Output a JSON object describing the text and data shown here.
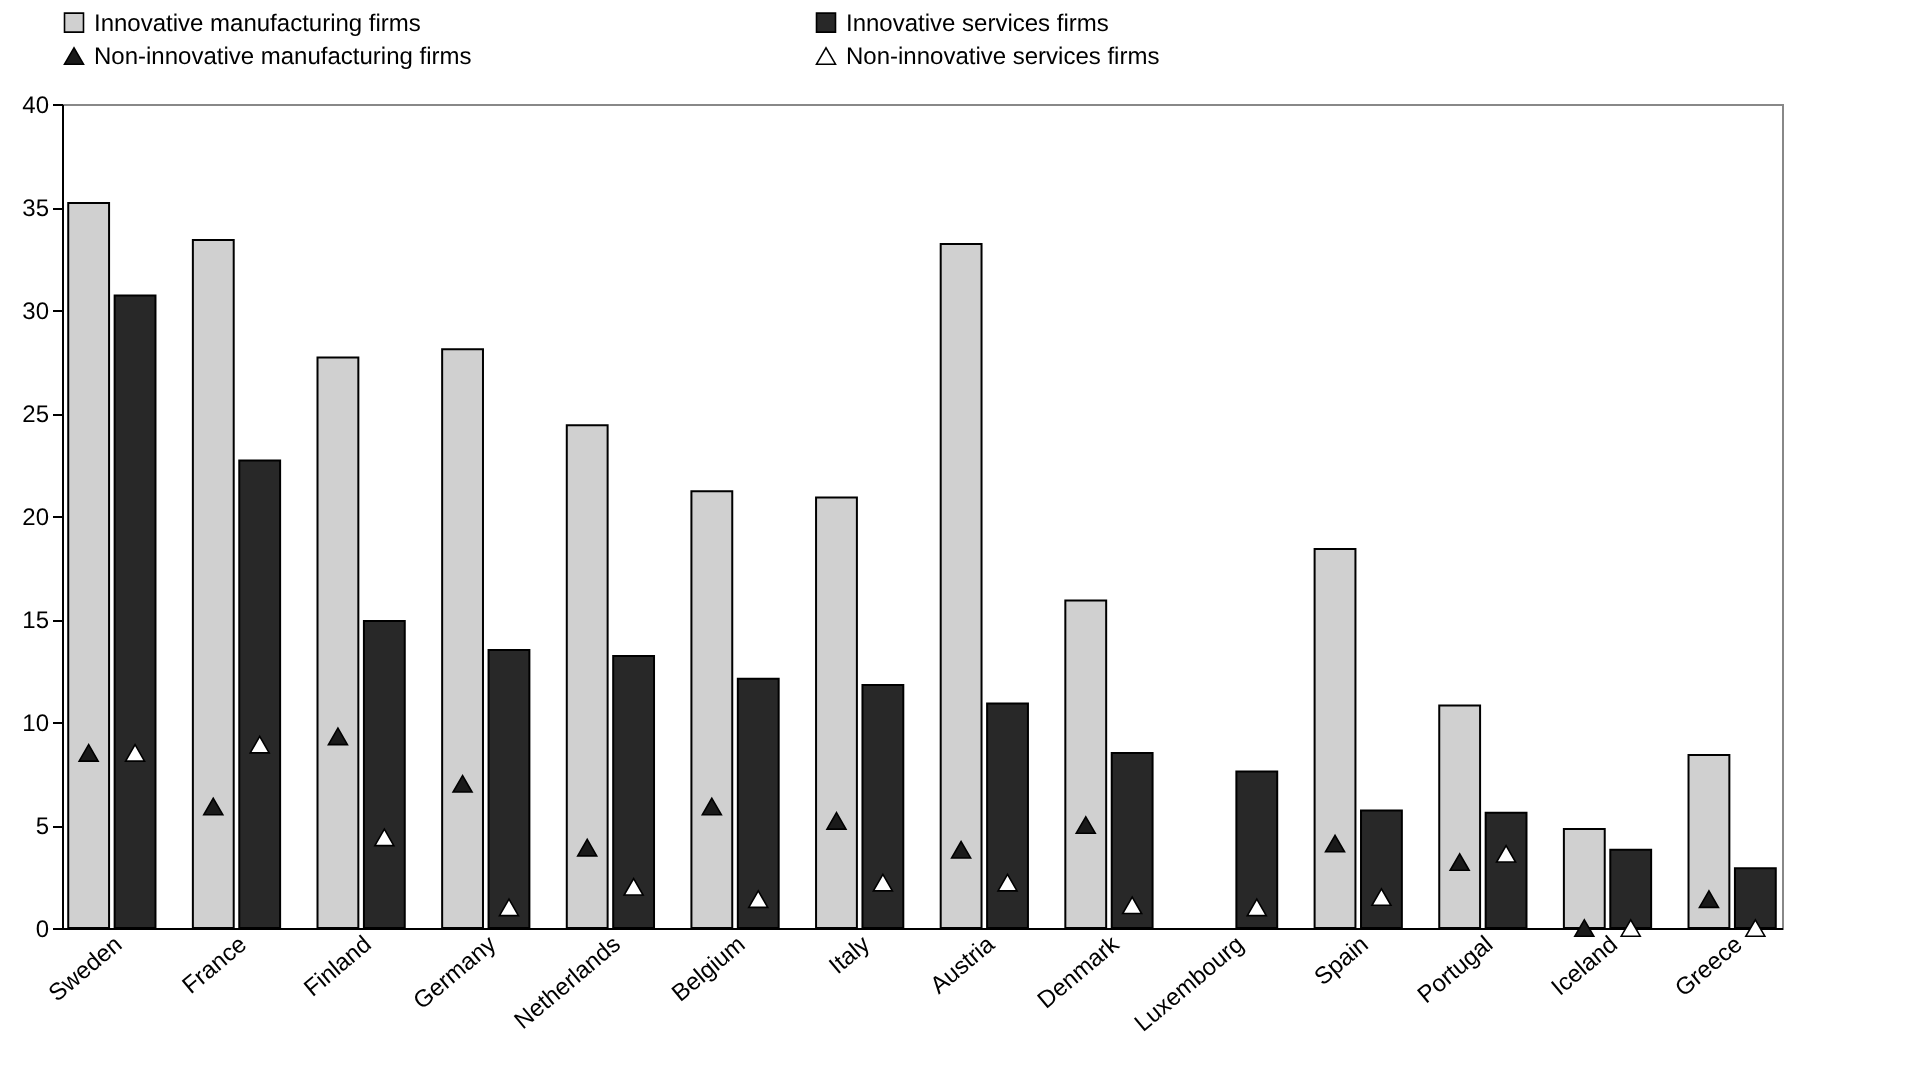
{
  "chart_data": {
    "type": "bar",
    "categories": [
      "Sweden",
      "France",
      "Finland",
      "Germany",
      "Netherlands",
      "Belgium",
      "Italy",
      "Austria",
      "Denmark",
      "Luxembourg",
      "Spain",
      "Portugal",
      "Iceland",
      "Greece"
    ],
    "series": [
      {
        "name": "Innovative manufacturing firms",
        "color": "#d0d0d0",
        "values": [
          35.2,
          33.4,
          27.7,
          28.1,
          24.4,
          21.2,
          20.9,
          33.2,
          15.9,
          null,
          18.4,
          10.8,
          4.8,
          8.4
        ]
      },
      {
        "name": "Innovative services firms",
        "color": "#282828",
        "values": [
          30.7,
          22.7,
          14.9,
          13.5,
          13.2,
          12.1,
          11.8,
          10.9,
          8.5,
          7.6,
          5.7,
          5.6,
          3.8,
          2.9
        ]
      },
      {
        "name": "Non-innovative manufacturing firms",
        "type": "scatter",
        "color": "#1a1a1a",
        "values": [
          8.5,
          5.9,
          9.3,
          7.0,
          3.9,
          5.9,
          5.2,
          3.8,
          5.0,
          null,
          4.1,
          3.2,
          0,
          1.4
        ]
      },
      {
        "name": "Non-innovative services firms",
        "type": "scatter",
        "color": "#ffffff",
        "values": [
          8.5,
          8.9,
          4.4,
          1.0,
          2.0,
          1.4,
          2.2,
          2.2,
          1.1,
          1.0,
          1.5,
          3.6,
          0,
          0
        ]
      }
    ],
    "marker": "triangle",
    "ylim": [
      0,
      40
    ],
    "yticks": [
      0,
      5,
      10,
      15,
      20,
      25,
      30,
      35,
      40
    ],
    "grid": false,
    "legend": "top"
  }
}
